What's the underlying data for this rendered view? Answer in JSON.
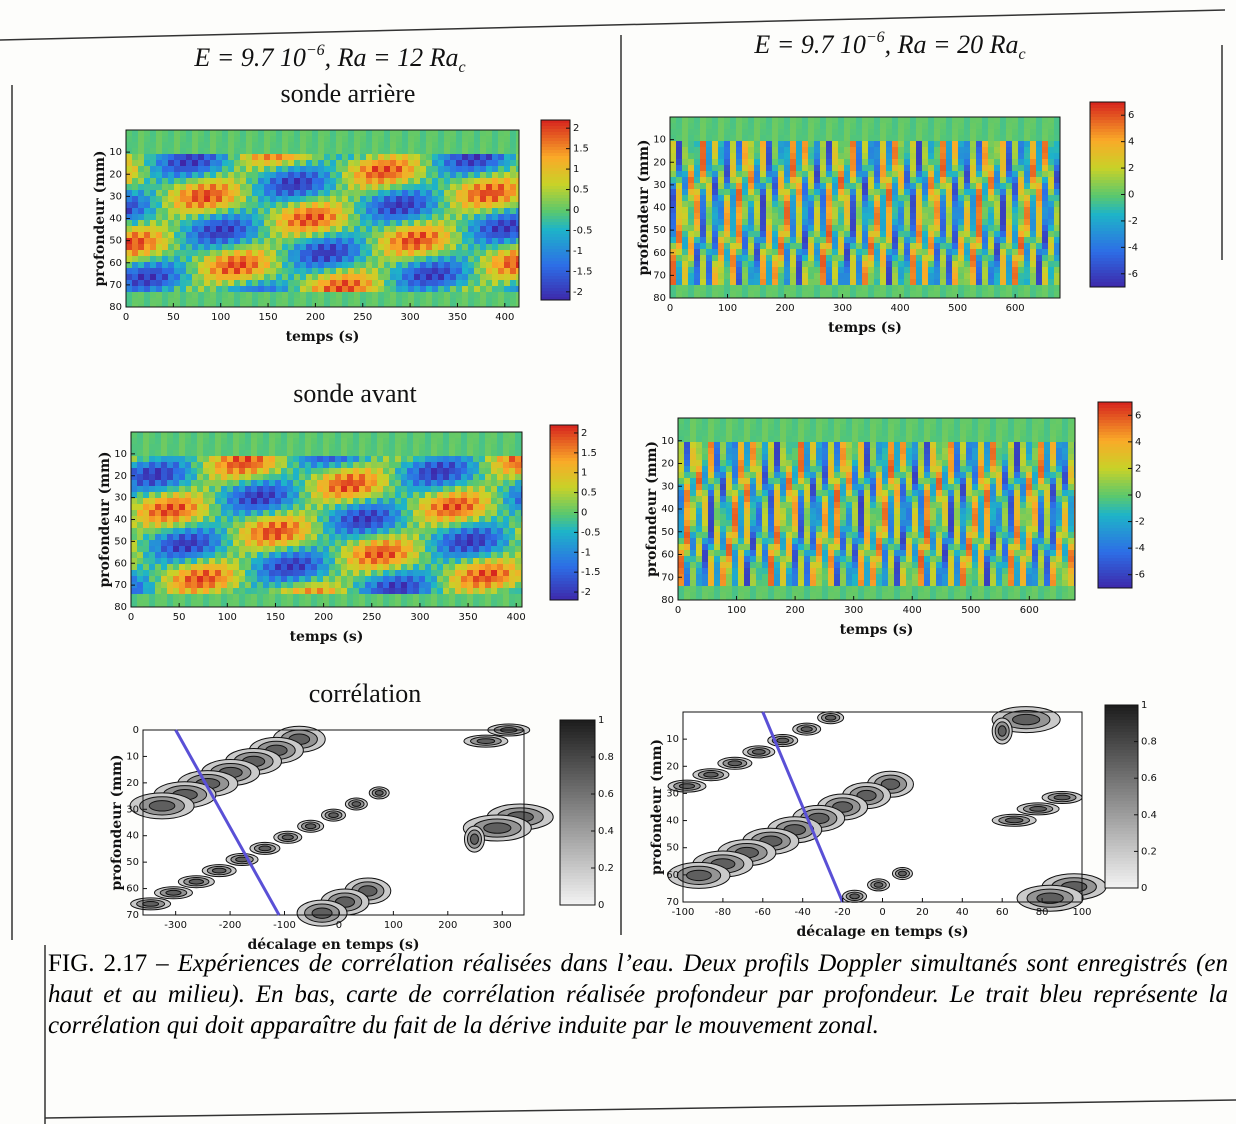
{
  "columns": [
    {
      "title": [
        {
          "text": "E = 9.7 10"
        },
        {
          "text": "−6",
          "script": "sup"
        },
        {
          "text": ", Ra = 12 Ra"
        },
        {
          "text": "c",
          "script": "sub"
        }
      ]
    },
    {
      "title": [
        {
          "text": "E = 9.7 10"
        },
        {
          "text": "−6",
          "script": "sup"
        },
        {
          "text": ", Ra = 20 Ra"
        },
        {
          "text": "c",
          "script": "sub"
        }
      ]
    }
  ],
  "chart_data": [
    {
      "type": "heatmap",
      "heading": "sonde arrière",
      "xlabel": "temps (s)",
      "ylabel": "profondeur (mm)",
      "xlim": [
        0,
        415
      ],
      "xticks": [
        0,
        50,
        100,
        150,
        200,
        250,
        300,
        350,
        400
      ],
      "ylim": [
        80,
        0
      ],
      "yticks": [
        10,
        20,
        30,
        40,
        50,
        60,
        70,
        80
      ],
      "colorbar": {
        "lim": [
          -2.2,
          2.2
        ],
        "ticks": [
          2,
          1.5,
          1,
          0.5,
          0,
          -0.5,
          -1,
          -1.5,
          -2
        ]
      }
    },
    {
      "type": "heatmap",
      "heading": "sonde avant",
      "xlabel": "temps (s)",
      "ylabel": "profondeur (mm)",
      "xlim": [
        0,
        406
      ],
      "xticks": [
        0,
        50,
        100,
        150,
        200,
        250,
        300,
        350,
        400
      ],
      "ylim": [
        80,
        0
      ],
      "yticks": [
        10,
        20,
        30,
        40,
        50,
        60,
        70,
        80
      ],
      "colorbar": {
        "lim": [
          -2.2,
          2.2
        ],
        "ticks": [
          2,
          1.5,
          1,
          0.5,
          0,
          -0.5,
          -1,
          -1.5,
          -2
        ]
      }
    },
    {
      "type": "contour",
      "heading": "corrélation",
      "xlabel": "décalage en temps (s)",
      "ylabel": "profondeur (mm)",
      "xlim": [
        -360,
        340
      ],
      "xticks": [
        -300,
        -200,
        -100,
        0,
        100,
        200,
        300
      ],
      "ylim": [
        70,
        0
      ],
      "yticks": [
        0,
        10,
        20,
        30,
        40,
        50,
        60,
        70
      ],
      "colorbar": {
        "lim": [
          0,
          1
        ],
        "ticks": [
          0,
          0.2,
          0.4,
          0.6,
          0.8,
          1
        ]
      },
      "drift_line": {
        "x": [
          -300,
          -110
        ],
        "y": [
          0,
          70
        ],
        "color": "#5a50d6"
      }
    },
    {
      "type": "heatmap",
      "xlabel": "temps (s)",
      "ylabel": "profondeur (mm)",
      "xlim": [
        0,
        678
      ],
      "xticks": [
        0,
        100,
        200,
        300,
        400,
        500,
        600
      ],
      "ylim": [
        80,
        0
      ],
      "yticks": [
        10,
        20,
        30,
        40,
        50,
        60,
        70,
        80
      ],
      "colorbar": {
        "lim": [
          -7,
          7
        ],
        "ticks": [
          6,
          4,
          2,
          0,
          -2,
          -4,
          -6
        ]
      }
    },
    {
      "type": "heatmap",
      "xlabel": "temps (s)",
      "ylabel": "profondeur (mm)",
      "xlim": [
        0,
        678
      ],
      "xticks": [
        0,
        100,
        200,
        300,
        400,
        500,
        600
      ],
      "ylim": [
        80,
        0
      ],
      "yticks": [
        10,
        20,
        30,
        40,
        50,
        60,
        70,
        80
      ],
      "colorbar": {
        "lim": [
          -7,
          7
        ],
        "ticks": [
          6,
          4,
          2,
          0,
          -2,
          -4,
          -6
        ]
      }
    },
    {
      "type": "contour",
      "xlabel": "décalage en temps (s)",
      "ylabel": "profondeur (mm)",
      "xlim": [
        -100,
        100
      ],
      "xticks": [
        -100,
        -80,
        -60,
        -40,
        -20,
        0,
        20,
        40,
        60,
        80,
        100
      ],
      "ylim": [
        70,
        0
      ],
      "yticks": [
        10,
        20,
        30,
        40,
        50,
        60,
        70
      ],
      "colorbar": {
        "lim": [
          0,
          1
        ],
        "ticks": [
          0.2,
          0.4,
          0.6,
          0.8,
          1,
          0
        ]
      },
      "drift_line": {
        "x": [
          -60,
          -20
        ],
        "y": [
          0,
          70
        ],
        "color": "#5a50d6"
      }
    }
  ],
  "caption": {
    "label": "FIG. 2.17 –",
    "text": "Expériences de corrélation réalisées dans l’eau. Deux profils Doppler simultanés sont enregistrés (en haut et au milieu). En bas, carte de corrélation réalisée profondeur par profondeur. Le trait bleu représente la corrélation qui doit apparaître du fait de la dérive induite par le mouvement zonal."
  }
}
